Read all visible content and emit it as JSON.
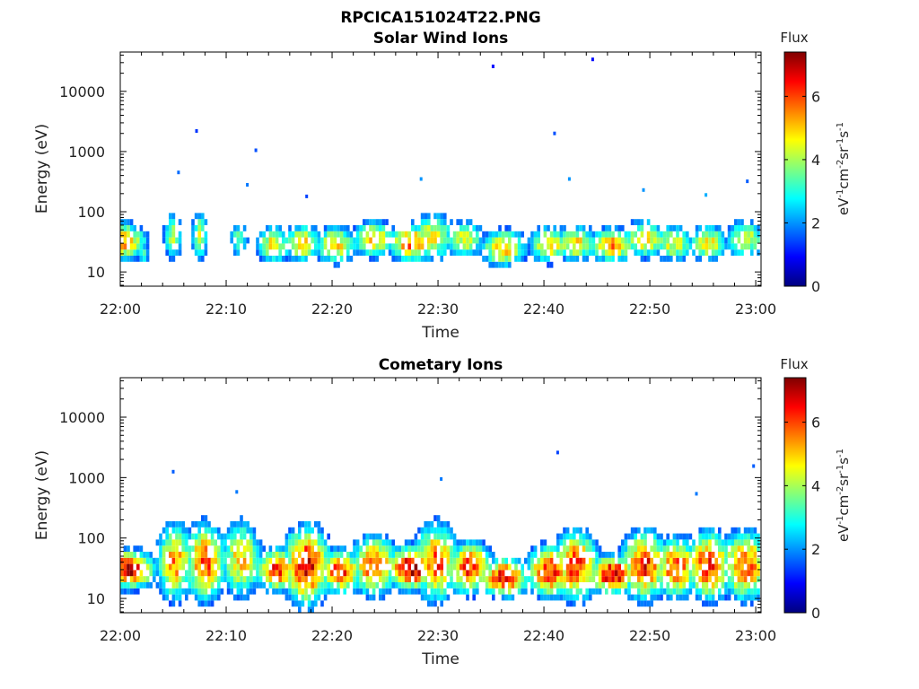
{
  "figure": {
    "filename": "RPCICA151024T22.PNG"
  },
  "colorbar": {
    "title": "Flux",
    "unit_parts": [
      "eV",
      "-1",
      "cm",
      "-2",
      "sr",
      "-1",
      "s",
      "-1"
    ],
    "range": [
      0,
      7.4
    ],
    "ticks": [
      "0",
      "2",
      "4",
      "6"
    ],
    "colormap": [
      "#00007f",
      "#0000ff",
      "#007fff",
      "#00ffff",
      "#7fff7f",
      "#ffff00",
      "#ff7f00",
      "#ff0000",
      "#7f0000"
    ]
  },
  "chart_data": [
    {
      "type": "heatmap",
      "title": "Solar Wind Ions",
      "xlabel": "Time",
      "ylabel": "Energy (eV)",
      "x_ticks": [
        "22:00",
        "22:10",
        "22:20",
        "22:30",
        "22:40",
        "22:50",
        "23:00"
      ],
      "x_range_minutes": [
        0,
        60.5
      ],
      "y_ticks": [
        "10",
        "100",
        "1000",
        "10000"
      ],
      "y_scale": "log",
      "y_range": [
        5.8,
        45000
      ],
      "bursts": [
        {
          "t": 0.3,
          "w": 1.6,
          "e": 32,
          "s": 0.22,
          "pk": 5.5
        },
        {
          "t": 2.2,
          "w": 0.4,
          "e": 20,
          "s": 0.15,
          "pk": 3.2
        },
        {
          "t": 5.0,
          "w": 0.7,
          "e": 40,
          "s": 0.3,
          "pk": 4.0
        },
        {
          "t": 7.5,
          "w": 0.6,
          "e": 40,
          "s": 0.3,
          "pk": 4.2
        },
        {
          "t": 11.2,
          "w": 0.7,
          "e": 35,
          "s": 0.22,
          "pk": 3.5
        },
        {
          "t": 14.5,
          "w": 1.2,
          "e": 28,
          "s": 0.22,
          "pk": 4.8
        },
        {
          "t": 17.2,
          "w": 1.3,
          "e": 30,
          "s": 0.22,
          "pk": 5.0
        },
        {
          "t": 20.3,
          "w": 1.5,
          "e": 28,
          "s": 0.22,
          "pk": 5.0
        },
        {
          "t": 24.0,
          "w": 1.5,
          "e": 35,
          "s": 0.22,
          "pk": 5.0
        },
        {
          "t": 27.5,
          "w": 1.6,
          "e": 30,
          "s": 0.22,
          "pk": 5.8
        },
        {
          "t": 29.5,
          "w": 1.5,
          "e": 38,
          "s": 0.28,
          "pk": 4.8
        },
        {
          "t": 32.5,
          "w": 1.4,
          "e": 35,
          "s": 0.22,
          "pk": 4.5
        },
        {
          "t": 36.2,
          "w": 1.6,
          "e": 25,
          "s": 0.22,
          "pk": 5.2
        },
        {
          "t": 40.5,
          "w": 1.4,
          "e": 28,
          "s": 0.22,
          "pk": 5.0
        },
        {
          "t": 43.0,
          "w": 1.5,
          "e": 30,
          "s": 0.22,
          "pk": 4.8
        },
        {
          "t": 46.5,
          "w": 1.6,
          "e": 28,
          "s": 0.2,
          "pk": 5.5
        },
        {
          "t": 49.5,
          "w": 1.5,
          "e": 35,
          "s": 0.22,
          "pk": 5.0
        },
        {
          "t": 52.2,
          "w": 1.5,
          "e": 30,
          "s": 0.22,
          "pk": 4.5
        },
        {
          "t": 55.5,
          "w": 1.3,
          "e": 30,
          "s": 0.22,
          "pk": 4.8
        },
        {
          "t": 59.0,
          "w": 1.4,
          "e": 35,
          "s": 0.22,
          "pk": 4.5
        }
      ],
      "isolated_points": [
        {
          "t": 35.2,
          "e": 26000,
          "v": 1.0
        },
        {
          "t": 44.6,
          "e": 34000,
          "v": 1.0
        },
        {
          "t": 7.2,
          "e": 2200,
          "v": 1.3
        },
        {
          "t": 12.8,
          "e": 1050,
          "v": 1.5
        },
        {
          "t": 41.0,
          "e": 2000,
          "v": 1.5
        },
        {
          "t": 28.4,
          "e": 350,
          "v": 2.0
        },
        {
          "t": 42.4,
          "e": 350,
          "v": 2.0
        },
        {
          "t": 5.5,
          "e": 450,
          "v": 1.7
        },
        {
          "t": 12.0,
          "e": 280,
          "v": 1.8
        },
        {
          "t": 17.6,
          "e": 180,
          "v": 1.4
        },
        {
          "t": 49.4,
          "e": 230,
          "v": 2.0
        },
        {
          "t": 55.3,
          "e": 190,
          "v": 2.2
        },
        {
          "t": 59.2,
          "e": 320,
          "v": 1.6
        }
      ]
    },
    {
      "type": "heatmap",
      "title": "Cometary Ions",
      "xlabel": "Time",
      "ylabel": "Energy (eV)",
      "x_ticks": [
        "22:00",
        "22:10",
        "22:20",
        "22:30",
        "22:40",
        "22:50",
        "23:00"
      ],
      "x_range_minutes": [
        0,
        60.5
      ],
      "y_ticks": [
        "10",
        "100",
        "1000",
        "10000"
      ],
      "y_scale": "log",
      "y_range": [
        5.8,
        45000
      ],
      "bursts": [
        {
          "t": 0.8,
          "w": 1.8,
          "e": 30,
          "s": 0.22,
          "pk": 7.0
        },
        {
          "t": 5.2,
          "w": 1.3,
          "e": 40,
          "s": 0.45,
          "pk": 5.5
        },
        {
          "t": 8.0,
          "w": 1.4,
          "e": 40,
          "s": 0.45,
          "pk": 6.0
        },
        {
          "t": 11.4,
          "w": 1.4,
          "e": 45,
          "s": 0.45,
          "pk": 5.0
        },
        {
          "t": 14.8,
          "w": 1.5,
          "e": 30,
          "s": 0.25,
          "pk": 6.3
        },
        {
          "t": 17.6,
          "w": 1.6,
          "e": 35,
          "s": 0.45,
          "pk": 6.8
        },
        {
          "t": 20.8,
          "w": 1.5,
          "e": 28,
          "s": 0.25,
          "pk": 6.3
        },
        {
          "t": 24.0,
          "w": 1.6,
          "e": 35,
          "s": 0.35,
          "pk": 6.0
        },
        {
          "t": 27.5,
          "w": 1.7,
          "e": 32,
          "s": 0.25,
          "pk": 7.2
        },
        {
          "t": 29.8,
          "w": 1.5,
          "e": 40,
          "s": 0.45,
          "pk": 6.0
        },
        {
          "t": 33.0,
          "w": 1.6,
          "e": 32,
          "s": 0.3,
          "pk": 6.3
        },
        {
          "t": 36.3,
          "w": 1.6,
          "e": 22,
          "s": 0.22,
          "pk": 6.8
        },
        {
          "t": 40.5,
          "w": 1.5,
          "e": 28,
          "s": 0.3,
          "pk": 6.5
        },
        {
          "t": 43.0,
          "w": 1.6,
          "e": 35,
          "s": 0.4,
          "pk": 6.3
        },
        {
          "t": 46.5,
          "w": 1.6,
          "e": 25,
          "s": 0.22,
          "pk": 7.0
        },
        {
          "t": 49.5,
          "w": 1.6,
          "e": 35,
          "s": 0.4,
          "pk": 6.3
        },
        {
          "t": 52.5,
          "w": 1.6,
          "e": 32,
          "s": 0.35,
          "pk": 6.0
        },
        {
          "t": 55.6,
          "w": 1.6,
          "e": 35,
          "s": 0.4,
          "pk": 6.3
        },
        {
          "t": 59.0,
          "w": 1.7,
          "e": 35,
          "s": 0.4,
          "pk": 6.0
        }
      ],
      "isolated_points": [
        {
          "t": 5.0,
          "e": 1250,
          "v": 1.6
        },
        {
          "t": 41.3,
          "e": 2600,
          "v": 1.4
        },
        {
          "t": 30.3,
          "e": 950,
          "v": 1.8
        },
        {
          "t": 59.8,
          "e": 1550,
          "v": 1.6
        },
        {
          "t": 11.0,
          "e": 580,
          "v": 1.8
        },
        {
          "t": 54.4,
          "e": 540,
          "v": 1.8
        }
      ]
    }
  ]
}
